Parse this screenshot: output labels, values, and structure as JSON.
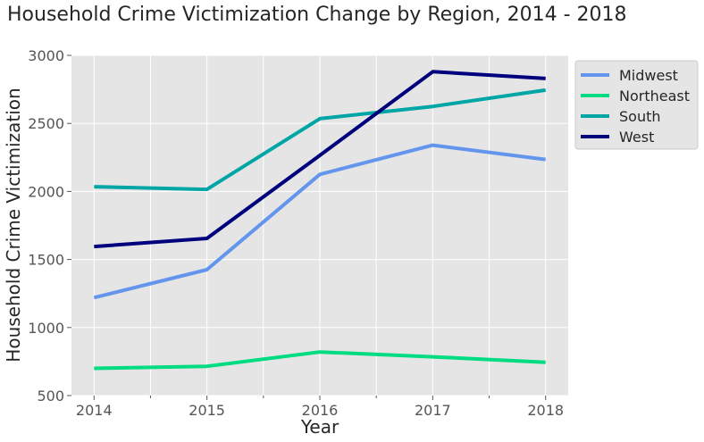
{
  "chart_data": {
    "type": "line",
    "title": "Household Crime Victimization Change by Region, 2014 - 2018",
    "xlabel": "Year",
    "ylabel": "Household Crime Victimization",
    "x": [
      2014,
      2015,
      2016,
      2017,
      2018
    ],
    "x_tick_labels": [
      "2014",
      "2015",
      "2016",
      "2017",
      "2018"
    ],
    "xlim": [
      2013.8,
      2018.2
    ],
    "ylim": [
      500,
      3000
    ],
    "y_ticks": [
      500,
      1000,
      1500,
      2000,
      2500,
      3000
    ],
    "y_tick_labels": [
      "500",
      "1000",
      "1500",
      "2000",
      "2500",
      "3000"
    ],
    "grid": true,
    "legend_position": "outside-right-top",
    "series": [
      {
        "name": "Midwest",
        "color": "#6495ED",
        "values": [
          1220,
          1425,
          2125,
          2340,
          2235
        ]
      },
      {
        "name": "Northeast",
        "color": "#00DC82",
        "values": [
          700,
          715,
          820,
          785,
          745
        ]
      },
      {
        "name": "South",
        "color": "#00A5A5",
        "values": [
          2035,
          2015,
          2535,
          2625,
          2745
        ]
      },
      {
        "name": "West",
        "color": "#00007D",
        "values": [
          1595,
          1655,
          2265,
          2880,
          2830
        ]
      }
    ]
  }
}
